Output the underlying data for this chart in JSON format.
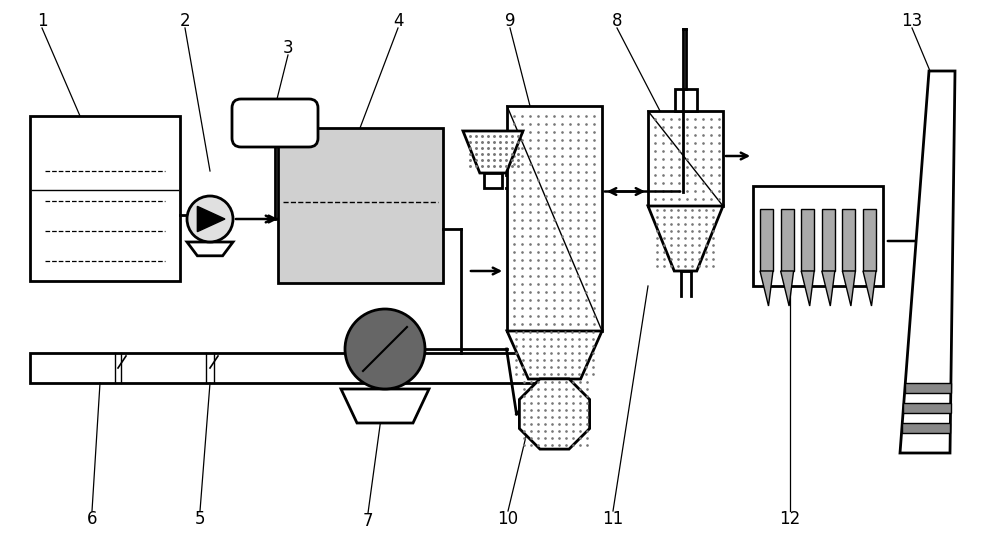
{
  "bg": "#ffffff",
  "lc": "#000000",
  "light_gray": "#cccccc",
  "mid_gray": "#999999",
  "dark_gray": "#555555",
  "dot_color": "#777777",
  "fig_w": 10.0,
  "fig_h": 5.41,
  "dpi": 100
}
